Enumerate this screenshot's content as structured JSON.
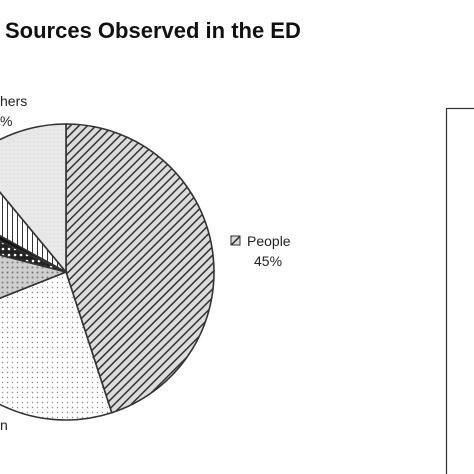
{
  "chart_data": {
    "type": "pie",
    "title": "Sources Observed in the ED",
    "slices": [
      {
        "name": "People",
        "value": 45,
        "pattern": "hatch-dense"
      },
      {
        "name": "",
        "value": 24,
        "pattern": "dots-fine"
      },
      {
        "name": "",
        "value": 10,
        "pattern": "dots-coarse"
      },
      {
        "name": "",
        "value": 3,
        "pattern": "dots-dark"
      },
      {
        "name": "",
        "value": 1,
        "pattern": "black"
      },
      {
        "name": "",
        "value": 6,
        "pattern": "vertical-lines"
      },
      {
        "name": "Others",
        "value": 11,
        "pattern": "light-fill"
      }
    ],
    "labels": [
      {
        "text": "People",
        "value_text": "45%"
      },
      {
        "text": "hers",
        "value_text": "%"
      },
      {
        "text": "n",
        "value_text": ""
      }
    ],
    "legend_box": true
  },
  "colors": {
    "outline": "#333333",
    "hatch": "#333333",
    "light": "#e8e8e8",
    "dark": "#111111"
  }
}
